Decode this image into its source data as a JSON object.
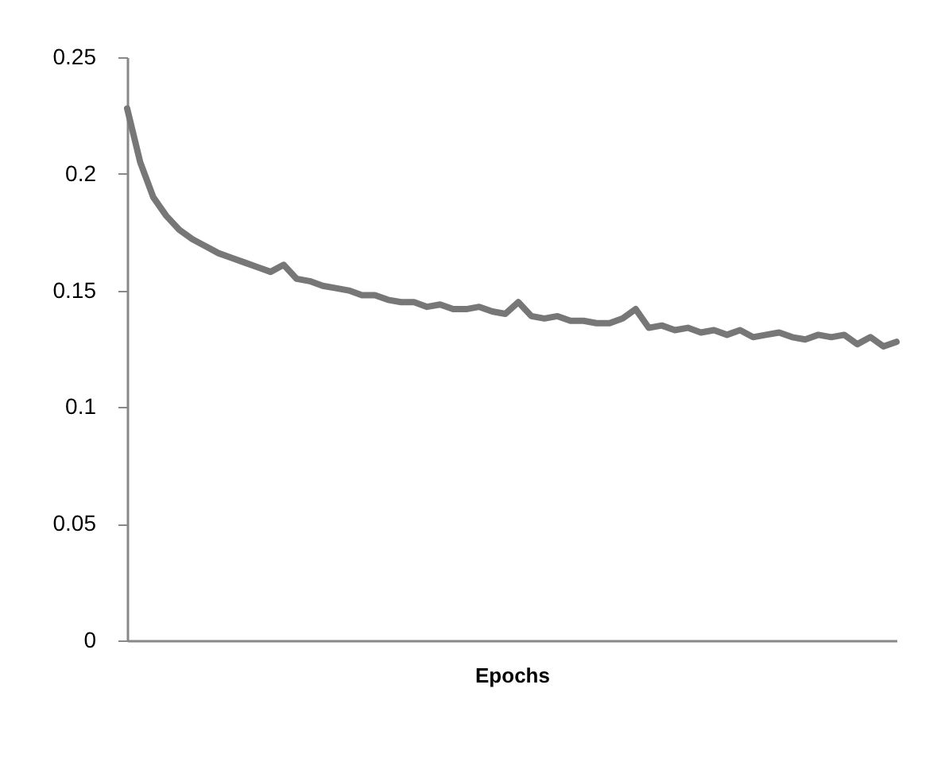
{
  "chart_data": {
    "type": "line",
    "xlabel": "Epochs",
    "categories": [
      null,
      null,
      null,
      null,
      null,
      null,
      null,
      null,
      null,
      null,
      null,
      null,
      null,
      null,
      null,
      null,
      null,
      null,
      null,
      null,
      null,
      null,
      null,
      null,
      null,
      null,
      null,
      null,
      null,
      null,
      null,
      null,
      null,
      null,
      null,
      null,
      null,
      null,
      null,
      null,
      null,
      null,
      null,
      null,
      null,
      null,
      null,
      null,
      null,
      null,
      null,
      null,
      null,
      null,
      null,
      null,
      null,
      null,
      null,
      null
    ],
    "series": [
      {
        "color": "#777777",
        "values": [
          0.228,
          0.205,
          0.19,
          0.182,
          0.176,
          0.172,
          0.169,
          0.166,
          0.164,
          0.162,
          0.16,
          0.158,
          0.161,
          0.155,
          0.154,
          0.152,
          0.151,
          0.15,
          0.148,
          0.148,
          0.146,
          0.145,
          0.145,
          0.143,
          0.144,
          0.142,
          0.142,
          0.143,
          0.141,
          0.14,
          0.145,
          0.139,
          0.138,
          0.139,
          0.137,
          0.137,
          0.136,
          0.136,
          0.138,
          0.142,
          0.134,
          0.135,
          0.133,
          0.134,
          0.132,
          0.133,
          0.131,
          0.133,
          0.13,
          0.131,
          0.132,
          0.13,
          0.129,
          0.131,
          0.13,
          0.131,
          0.127,
          0.13,
          0.126,
          0.128
        ]
      }
    ],
    "ylim": [
      0,
      0.25
    ],
    "yticks": [
      0,
      0.05,
      0.1,
      0.15,
      0.2,
      0.25
    ],
    "grid": false,
    "legend": false,
    "marker": "none",
    "line_style": "solid"
  }
}
